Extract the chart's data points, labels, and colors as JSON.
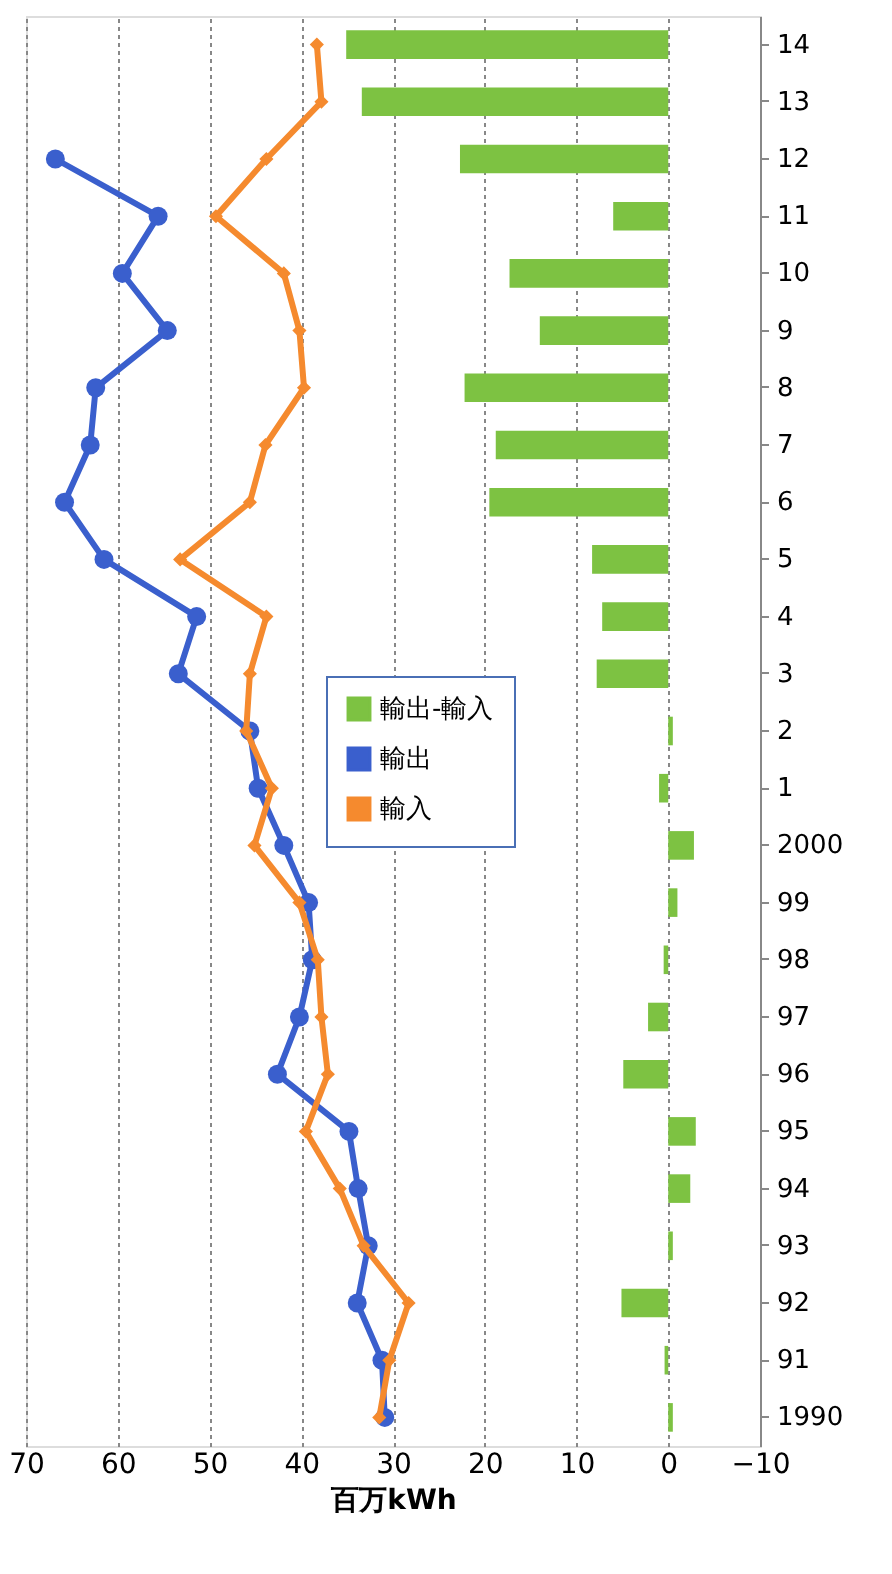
{
  "chart_data": {
    "type": "bar",
    "orientation": "horizontal",
    "categories": [
      "14",
      "13",
      "12",
      "11",
      "10",
      "9",
      "8",
      "7",
      "6",
      "5",
      "4",
      "3",
      "2",
      "1",
      "2000",
      "99",
      "98",
      "97",
      "96",
      "95",
      "94",
      "93",
      "92",
      "91",
      "1990"
    ],
    "series": [
      {
        "name": "輸出-輸入",
        "color": "#7dc242",
        "values": [
          35.1,
          33.4,
          22.7,
          6.0,
          17.3,
          14.0,
          22.2,
          18.8,
          19.5,
          8.3,
          7.2,
          7.8,
          -0.5,
          1.0,
          -2.8,
          -1.0,
          0.5,
          2.2,
          4.9,
          -3.0,
          -2.4,
          -0.5,
          5.1,
          0.4,
          -0.5
        ]
      },
      {
        "name": "輸出",
        "type": "line",
        "color": "#3a5fcd",
        "marker": "circle",
        "values": [
          null,
          null,
          66.8,
          55.6,
          59.5,
          54.6,
          62.4,
          63.0,
          65.8,
          61.5,
          51.4,
          53.4,
          45.6,
          44.7,
          41.9,
          39.2,
          38.8,
          40.2,
          42.6,
          34.8,
          33.8,
          32.7,
          33.9,
          31.2,
          30.9
        ]
      },
      {
        "name": "輸入",
        "type": "line",
        "color": "#f58a2e",
        "marker": "diamond",
        "values": [
          38.3,
          37.8,
          43.8,
          49.3,
          41.9,
          40.2,
          39.7,
          43.9,
          45.6,
          53.2,
          43.8,
          45.6,
          46.0,
          43.2,
          45.1,
          40.2,
          38.2,
          37.8,
          37.1,
          39.5,
          35.8,
          33.2,
          28.3,
          30.4,
          31.5
        ]
      }
    ],
    "xlabel": "百万kWh",
    "xlim": [
      70,
      -10
    ],
    "xticks": [
      70,
      60,
      50,
      40,
      30,
      20,
      10,
      0,
      -10
    ],
    "grid": "x",
    "legend": "right"
  }
}
